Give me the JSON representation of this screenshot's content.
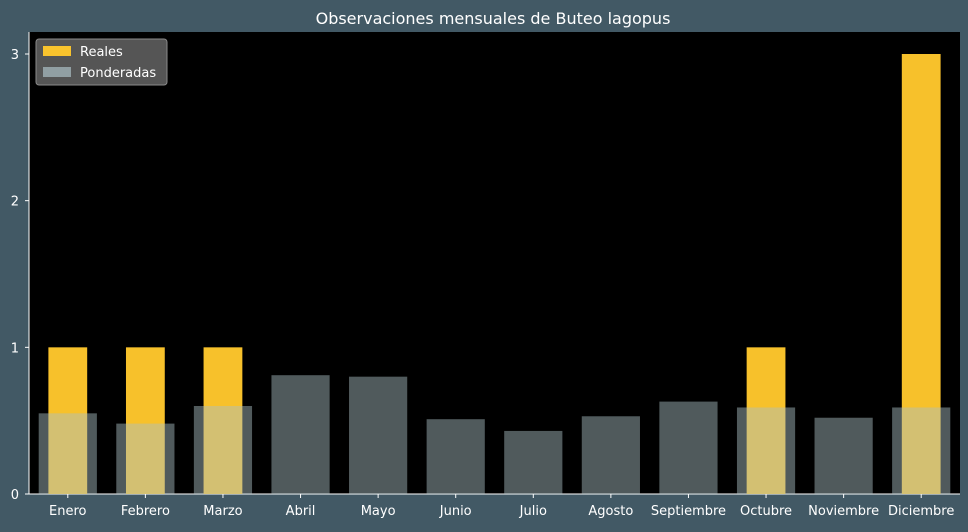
{
  "chart_data": {
    "type": "bar",
    "title": "Observaciones mensuales de Buteo lagopus",
    "xlabel": "",
    "ylabel": "",
    "categories": [
      "Enero",
      "Febrero",
      "Marzo",
      "Abril",
      "Mayo",
      "Junio",
      "Julio",
      "Agosto",
      "Septiembre",
      "Octubre",
      "Noviembre",
      "Diciembre"
    ],
    "series": [
      {
        "name": "Reales",
        "color": "#ffc72c",
        "values": [
          1,
          1,
          1,
          0,
          0,
          0,
          0,
          0,
          0,
          1,
          0,
          3
        ]
      },
      {
        "name": "Ponderadas",
        "color": "#abbfc4",
        "values": [
          0.55,
          0.48,
          0.6,
          0.81,
          0.8,
          0.51,
          0.43,
          0.53,
          0.63,
          0.59,
          0.52,
          0.59
        ]
      }
    ],
    "ylim": [
      0,
      3.15
    ],
    "yticks": [
      0,
      1,
      2,
      3
    ],
    "grid": false,
    "legend_position": "top-left",
    "colors": {
      "background": "#425965",
      "plot_background": "#000000",
      "text": "#ffffff"
    }
  }
}
